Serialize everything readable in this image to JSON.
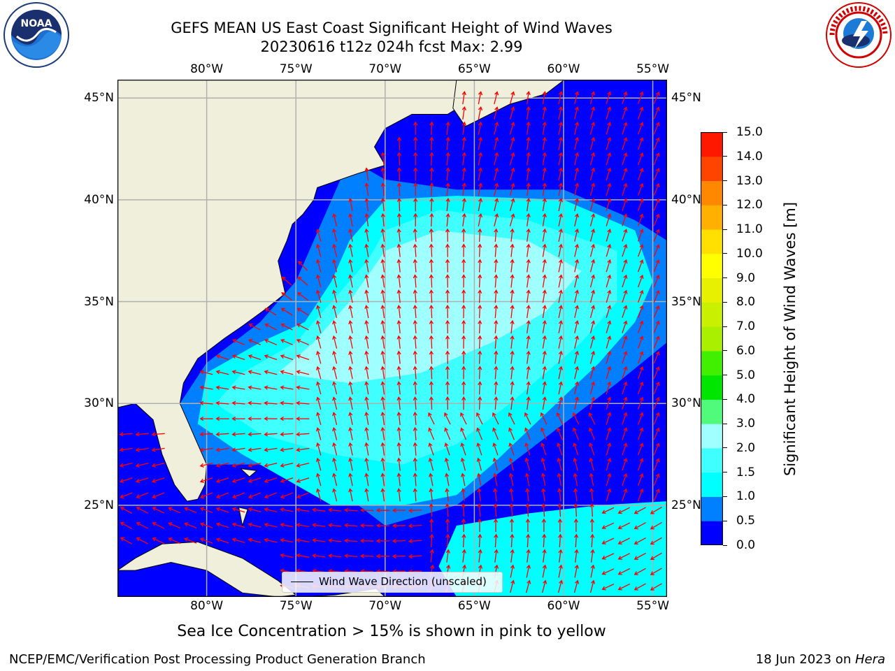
{
  "title_line1": "GEFS MEAN US East Coast Significant Height of Wind Waves",
  "title_line2": "20230616 t12z 024h fcst   Max: 2.99",
  "logos": {
    "left": "noaa-logo",
    "right": "nws-logo",
    "left_text": "NOAA",
    "right_text": "NATIONAL WEATHER SERVICE"
  },
  "x_ticks": [
    "80°W",
    "75°W",
    "70°W",
    "65°W",
    "60°W",
    "55°W"
  ],
  "y_ticks": [
    "45°N",
    "40°N",
    "35°N",
    "30°N",
    "25°N"
  ],
  "map": {
    "lon_range": [
      -85,
      -54.2
    ],
    "lat_range": [
      20.5,
      45.9
    ],
    "land_color": "#efefdc",
    "grid_color": "#b0b0b0",
    "arrow_color": "#ff0000"
  },
  "colorbar": {
    "label": "Significant Height of Wind Waves [m]",
    "ticks": [
      "0.0",
      "0.5",
      "1.0",
      "1.5",
      "2.0",
      "3.0",
      "4.0",
      "5.0",
      "6.0",
      "7.0",
      "8.0",
      "9.0",
      "10.0",
      "11.0",
      "12.0",
      "13.0",
      "14.0",
      "15.0"
    ],
    "colors": [
      "#0000ff",
      "#0080ff",
      "#00ffff",
      "#40ffff",
      "#a0ffff",
      "#50fa7a",
      "#00e600",
      "#40f000",
      "#aaee00",
      "#c8f000",
      "#e6f000",
      "#ffff00",
      "#ffe000",
      "#ffb000",
      "#ff8800",
      "#ff4400",
      "#ff1800"
    ]
  },
  "legend_label": "Wind Wave Direction (unscaled)",
  "caption": "Sea Ice Concentration > 15% is shown in pink to yellow",
  "footer_left": "NCEP/EMC/Verification Post Processing Product Generation Branch",
  "footer_right_date": "18 Jun 2023 on ",
  "footer_right_machine": "Hera"
}
